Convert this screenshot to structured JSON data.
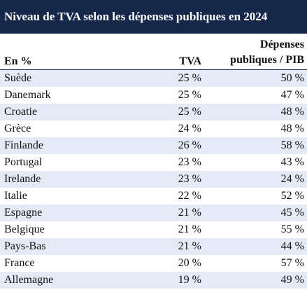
{
  "title": "Niveau de TVA selon les dépenses publiques en 2024",
  "headers": {
    "label": "En %",
    "tva": "TVA",
    "dep_line1": "Dépenses",
    "dep_line2": "publiques / PIB"
  },
  "colors": {
    "title_bg": "#15284a",
    "stripe": "#e4eaf6"
  },
  "rows": [
    {
      "country": "Suède",
      "tva": "25 %",
      "dep": "50 %"
    },
    {
      "country": "Danemark",
      "tva": "25 %",
      "dep": "47 %"
    },
    {
      "country": "Croatie",
      "tva": "25 %",
      "dep": "48 %"
    },
    {
      "country": "Grèce",
      "tva": "24 %",
      "dep": "48 %"
    },
    {
      "country": "Finlande",
      "tva": "26 %",
      "dep": "58 %"
    },
    {
      "country": "Portugal",
      "tva": "23 %",
      "dep": "43 %"
    },
    {
      "country": "Irelande",
      "tva": "23 %",
      "dep": "24 %"
    },
    {
      "country": "Italie",
      "tva": "22 %",
      "dep": "52 %"
    },
    {
      "country": "Espagne",
      "tva": "21 %",
      "dep": "45 %"
    },
    {
      "country": "Belgique",
      "tva": "21 %",
      "dep": "55 %"
    },
    {
      "country": "Pays-Bas",
      "tva": "21 %",
      "dep": "44 %"
    },
    {
      "country": "France",
      "tva": "20 %",
      "dep": "57 %"
    },
    {
      "country": "Allemagne",
      "tva": "19 %",
      "dep": "49 %"
    }
  ]
}
